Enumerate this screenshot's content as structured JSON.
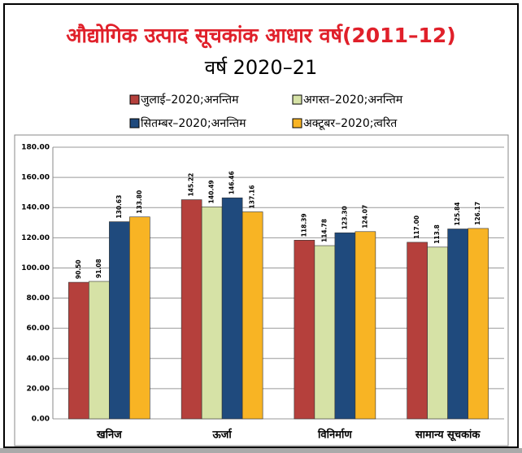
{
  "chart_data": {
    "type": "bar",
    "title": "औद्योगिक उत्पाद सूचकांक आधार वर्ष(2011–12)",
    "subtitle": "वर्ष 2020–21",
    "categories": [
      "खनिज",
      "ऊर्जा",
      "विनिर्माण",
      "सामान्य सूचकांक"
    ],
    "series": [
      {
        "name": "जुलाई–2020;अनन्तिम",
        "color": "#b5403c",
        "values": [
          90.5,
          145.22,
          118.39,
          117.0
        ],
        "value_labels": [
          "90.50",
          "145.22",
          "118.39",
          "117.00"
        ]
      },
      {
        "name": "अगस्त–2020;अनन्तिम",
        "color": "#d6e2a6",
        "values": [
          91.08,
          140.49,
          114.78,
          113.8
        ],
        "value_labels": [
          "91.08",
          "140.49",
          "114.78",
          "113.8"
        ]
      },
      {
        "name": "सितम्बर–2020;अनन्तिम",
        "color": "#1f4a7d",
        "values": [
          130.63,
          146.46,
          123.3,
          125.84
        ],
        "value_labels": [
          "130.63",
          "146.46",
          "123.30",
          "125.84"
        ]
      },
      {
        "name": "अक्टूबर–2020;त्वरित",
        "color": "#f8b424",
        "values": [
          133.8,
          137.16,
          124.07,
          126.17
        ],
        "value_labels": [
          "133.80",
          "137.16",
          "124.07",
          "126.17"
        ]
      }
    ],
    "ylim": [
      0,
      180
    ],
    "yticks": [
      {
        "value": 0,
        "label": "0.00"
      },
      {
        "value": 20,
        "label": "20.00"
      },
      {
        "value": 40,
        "label": "40.00"
      },
      {
        "value": 60,
        "label": "60.00"
      },
      {
        "value": 80,
        "label": "80.00"
      },
      {
        "value": 100,
        "label": "100.00"
      },
      {
        "value": 120,
        "label": "120.00"
      },
      {
        "value": 140,
        "label": "140.00"
      },
      {
        "value": 160,
        "label": "160.00"
      },
      {
        "value": 180,
        "label": "180.00"
      }
    ],
    "grid": true
  }
}
